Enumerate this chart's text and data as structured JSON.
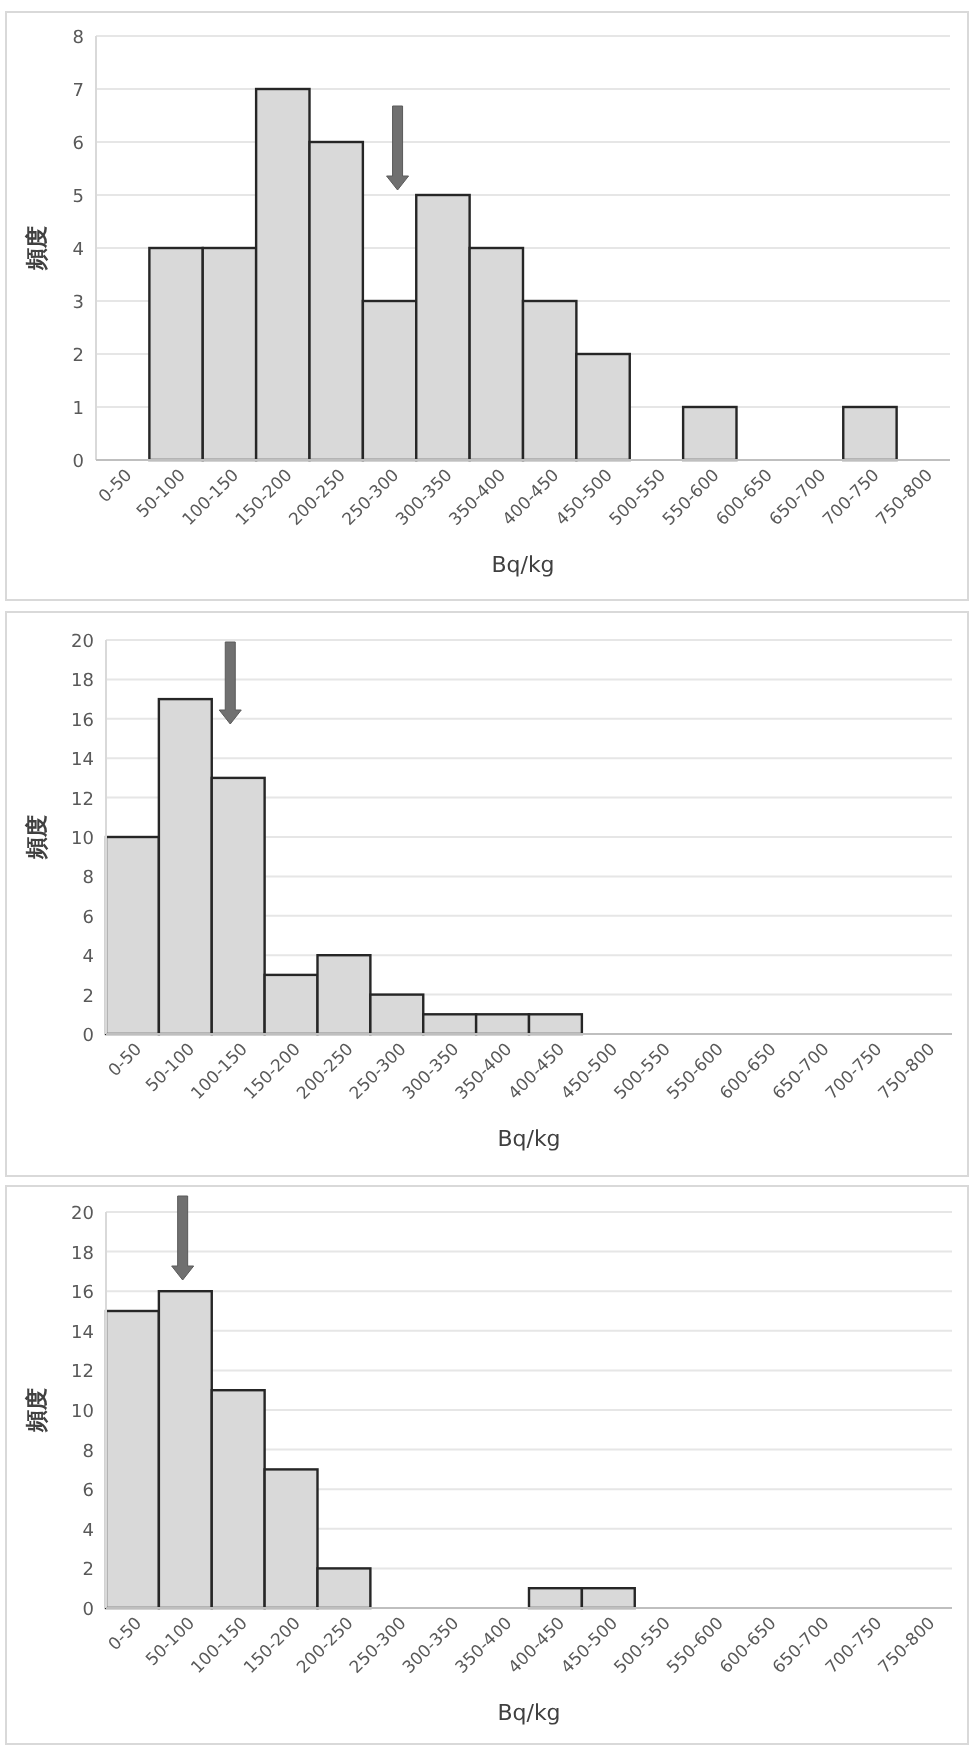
{
  "chart_data": [
    {
      "type": "bar",
      "xlabel": "Bq/kg",
      "ylabel": "頻度",
      "categories": [
        "0-50",
        "50-100",
        "100-150",
        "150-200",
        "200-250",
        "250-300",
        "300-350",
        "350-400",
        "400-450",
        "450-500",
        "500-550",
        "550-600",
        "600-650",
        "650-700",
        "700-750",
        "750-800"
      ],
      "values": [
        0,
        4,
        4,
        7,
        6,
        3,
        5,
        4,
        3,
        2,
        0,
        1,
        0,
        0,
        1,
        0
      ],
      "color": "#d9d9d9",
      "ylim": [
        0,
        8
      ],
      "yticks": [
        0,
        1,
        2,
        3,
        4,
        5,
        6,
        7,
        8
      ],
      "grid": "y"
    },
    {
      "type": "bar",
      "xlabel": "Bq/kg",
      "ylabel": "頻度",
      "categories": [
        "0-50",
        "50-100",
        "100-150",
        "150-200",
        "200-250",
        "250-300",
        "300-350",
        "350-400",
        "400-450",
        "450-500",
        "500-550",
        "550-600",
        "600-650",
        "650-700",
        "700-750",
        "750-800"
      ],
      "values": [
        10,
        17,
        13,
        3,
        4,
        2,
        1,
        1,
        1,
        0,
        0,
        0,
        0,
        0,
        0,
        0
      ],
      "color": "#d9d9d9",
      "ylim": [
        0,
        20
      ],
      "yticks": [
        0,
        2,
        4,
        6,
        8,
        10,
        12,
        14,
        16,
        18,
        20
      ],
      "grid": "y"
    },
    {
      "type": "bar",
      "xlabel": "Bq/kg",
      "ylabel": "頻度",
      "categories": [
        "0-50",
        "50-100",
        "100-150",
        "150-200",
        "200-250",
        "250-300",
        "300-350",
        "350-400",
        "400-450",
        "450-500",
        "500-550",
        "550-600",
        "600-650",
        "650-700",
        "700-750",
        "750-800"
      ],
      "values": [
        15,
        16,
        11,
        7,
        2,
        0,
        0,
        0,
        1,
        1,
        0,
        0,
        0,
        0,
        0,
        0
      ],
      "color": "#d9d9d9",
      "ylim": [
        0,
        20
      ],
      "yticks": [
        0,
        2,
        4,
        6,
        8,
        10,
        12,
        14,
        16,
        18,
        20
      ],
      "grid": "y"
    }
  ]
}
